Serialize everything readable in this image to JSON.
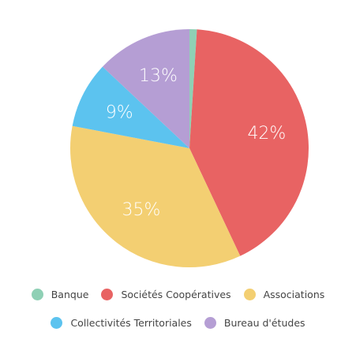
{
  "chart_data": {
    "type": "pie",
    "categories": [
      "Banque",
      "Sociétés Coopératives",
      "Associations",
      "Collectivités Territoriales",
      "Bureau d'études"
    ],
    "values": [
      1,
      42,
      35,
      9,
      13
    ],
    "data_labels": [
      "1%",
      "42%",
      "35%",
      "9%",
      "13%"
    ],
    "colors": [
      "#8fd0b5",
      "#e86363",
      "#f3cf72",
      "#5cc3ef",
      "#b59ed4"
    ],
    "legend": {
      "position": "bottom"
    }
  }
}
